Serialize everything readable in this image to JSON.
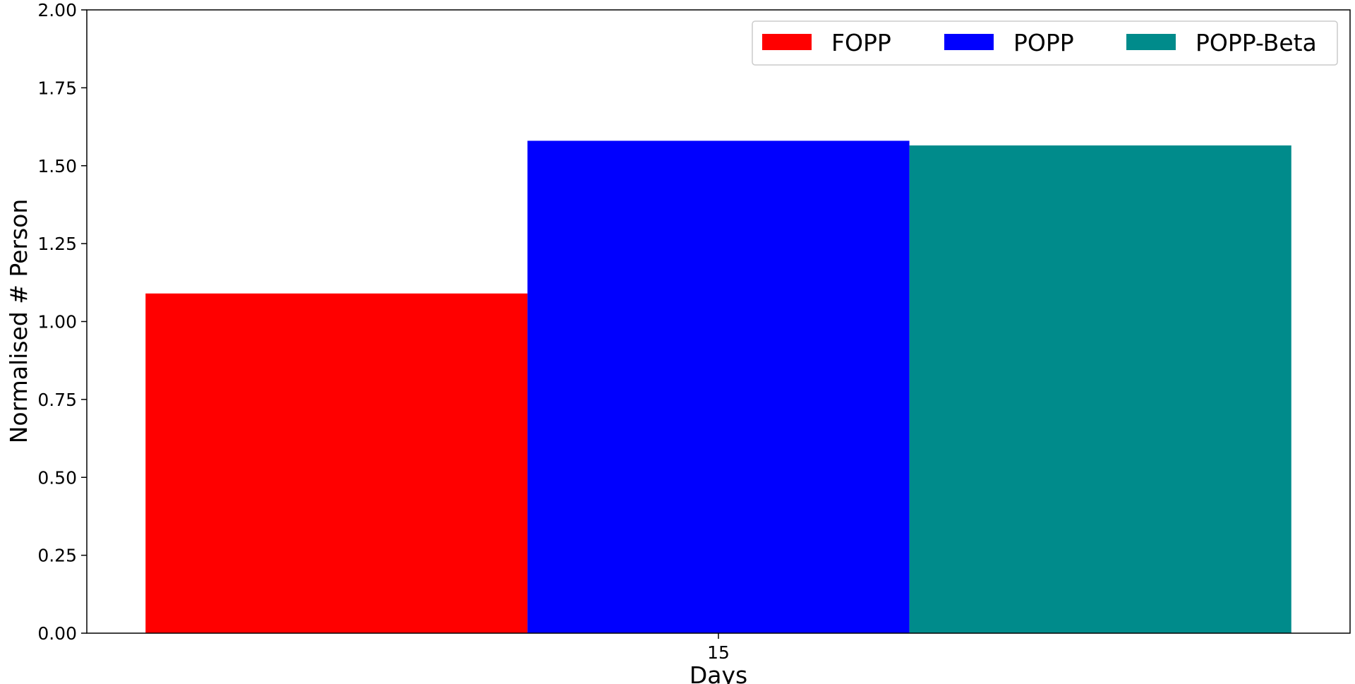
{
  "chart_data": {
    "type": "bar",
    "title": "",
    "xlabel": "Days",
    "ylabel": "Normalised # Person",
    "categories": [
      "15"
    ],
    "series": [
      {
        "name": "FOPP",
        "values": [
          1.09
        ],
        "color": "#ff0000"
      },
      {
        "name": "POPP",
        "values": [
          1.58
        ],
        "color": "#0000ff"
      },
      {
        "name": "POPP-Beta",
        "values": [
          1.565
        ],
        "color": "#008b8b"
      }
    ],
    "ylim": [
      0,
      2
    ],
    "yticks": [
      "0.00",
      "0.25",
      "0.50",
      "0.75",
      "1.00",
      "1.25",
      "1.50",
      "1.75",
      "2.00"
    ],
    "grid": false,
    "legend_position": "top-right"
  }
}
